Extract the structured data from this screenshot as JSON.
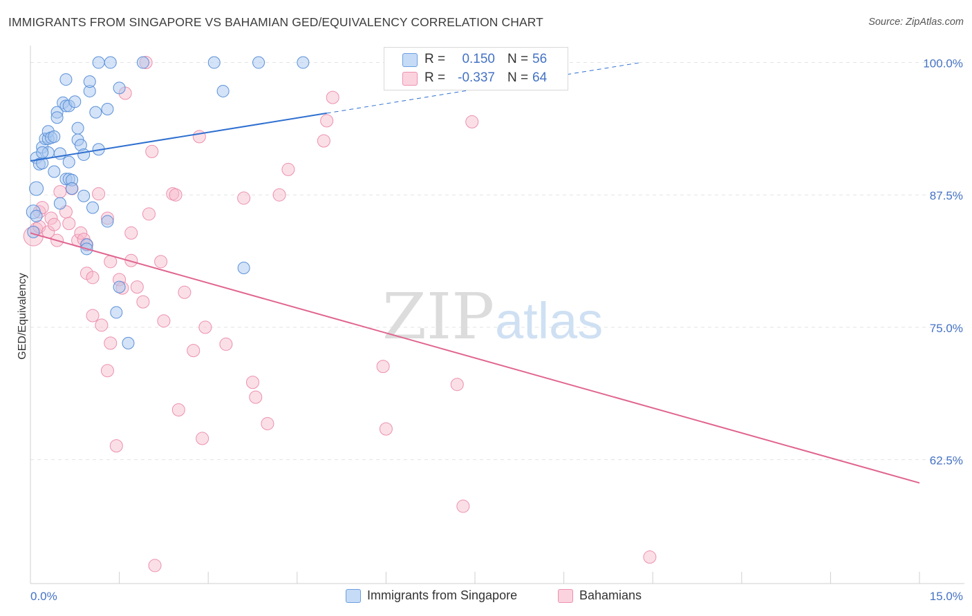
{
  "header": {
    "title": "IMMIGRANTS FROM SINGAPORE VS BAHAMIAN GED/EQUIVALENCY CORRELATION CHART",
    "source": "Source: ZipAtlas.com"
  },
  "watermark": {
    "zip": "ZIP",
    "atlas": "atlas"
  },
  "legend_top": [
    {
      "r_label": "R =",
      "r_value": "0.150",
      "n_label": "N =",
      "n_value": "56",
      "color": "#a9c8f0"
    },
    {
      "r_label": "R =",
      "r_value": "-0.337",
      "n_label": "N =",
      "n_value": "64",
      "color": "#f6b7c9"
    }
  ],
  "legend_bottom": [
    {
      "label": "Immigrants from Singapore",
      "color": "#a9c8f0"
    },
    {
      "label": "Bahamians",
      "color": "#f6b7c9"
    }
  ],
  "colors": {
    "blue": "#4a86d8",
    "blue_line": "#2e6fd0",
    "pink": "#e8769c",
    "pink_line": "#e0648f",
    "axis_text": "#4472c4",
    "grid": "#e3e3e3"
  },
  "chart_data": {
    "type": "scatter",
    "title": "IMMIGRANTS FROM SINGAPORE VS BAHAMIAN GED/EQUIVALENCY CORRELATION CHART",
    "xlabel": "",
    "ylabel": "GED/Equivalency",
    "xlim": [
      0,
      15
    ],
    "ylim": [
      50.8,
      101.6
    ],
    "x_tick_labels": [
      "0.0%",
      "15.0%"
    ],
    "y_ticks": [
      62.5,
      75.0,
      87.5,
      100.0
    ],
    "y_tick_labels": [
      "62.5%",
      "75.0%",
      "87.5%",
      "100.0%"
    ],
    "grid": true,
    "legend_position": "top-center",
    "series": [
      {
        "name": "Immigrants from Singapore",
        "color": "#4a86d8",
        "points": [
          [
            0.1,
            88.1
          ],
          [
            0.05,
            85.9
          ],
          [
            0.1,
            91.0
          ],
          [
            0.15,
            90.4
          ],
          [
            0.2,
            92.0
          ],
          [
            0.2,
            90.5
          ],
          [
            0.25,
            92.8
          ],
          [
            0.3,
            92.8
          ],
          [
            0.3,
            91.5
          ],
          [
            0.3,
            93.5
          ],
          [
            0.35,
            92.9
          ],
          [
            0.4,
            93.0
          ],
          [
            0.4,
            89.7
          ],
          [
            0.45,
            95.3
          ],
          [
            0.45,
            94.8
          ],
          [
            0.5,
            91.4
          ],
          [
            0.5,
            86.7
          ],
          [
            0.55,
            96.2
          ],
          [
            0.6,
            95.9
          ],
          [
            0.6,
            98.4
          ],
          [
            0.6,
            89.0
          ],
          [
            0.65,
            90.6
          ],
          [
            0.65,
            95.9
          ],
          [
            0.65,
            89.0
          ],
          [
            0.7,
            88.9
          ],
          [
            0.7,
            88.1
          ],
          [
            0.75,
            96.3
          ],
          [
            0.8,
            93.8
          ],
          [
            0.8,
            92.7
          ],
          [
            0.85,
            92.2
          ],
          [
            0.9,
            87.4
          ],
          [
            0.9,
            91.3
          ],
          [
            0.95,
            82.8
          ],
          [
            0.95,
            82.4
          ],
          [
            1.0,
            97.3
          ],
          [
            1.0,
            98.2
          ],
          [
            1.05,
            86.3
          ],
          [
            1.1,
            95.3
          ],
          [
            1.15,
            100.0
          ],
          [
            1.15,
            91.8
          ],
          [
            1.3,
            95.6
          ],
          [
            1.3,
            85.0
          ],
          [
            1.35,
            100.0
          ],
          [
            1.45,
            76.4
          ],
          [
            1.5,
            97.6
          ],
          [
            1.5,
            78.8
          ],
          [
            1.65,
            73.5
          ],
          [
            1.9,
            100.0
          ],
          [
            3.1,
            100.0
          ],
          [
            3.25,
            97.3
          ],
          [
            3.6,
            80.6
          ],
          [
            3.85,
            100.0
          ],
          [
            4.6,
            100.0
          ],
          [
            0.05,
            84.0
          ],
          [
            0.1,
            85.5
          ],
          [
            0.2,
            91.5
          ]
        ],
        "trend": {
          "x": [
            0.0,
            10.3
          ],
          "y": [
            90.7,
            100.0
          ],
          "solid_until_x": 5.0
        }
      },
      {
        "name": "Bahamians",
        "color": "#e8769c",
        "points": [
          [
            0.05,
            83.6
          ],
          [
            0.1,
            84.3
          ],
          [
            0.15,
            85.9
          ],
          [
            0.15,
            84.5
          ],
          [
            0.2,
            86.3
          ],
          [
            0.3,
            84.0
          ],
          [
            0.35,
            85.3
          ],
          [
            0.4,
            84.7
          ],
          [
            0.45,
            83.2
          ],
          [
            0.5,
            87.8
          ],
          [
            0.6,
            85.9
          ],
          [
            0.65,
            84.8
          ],
          [
            0.7,
            88.1
          ],
          [
            0.8,
            83.2
          ],
          [
            0.85,
            83.9
          ],
          [
            0.9,
            83.3
          ],
          [
            0.95,
            82.8
          ],
          [
            0.95,
            80.1
          ],
          [
            1.05,
            79.7
          ],
          [
            1.05,
            76.1
          ],
          [
            1.15,
            87.6
          ],
          [
            1.2,
            75.2
          ],
          [
            1.3,
            70.9
          ],
          [
            1.3,
            85.3
          ],
          [
            1.35,
            81.2
          ],
          [
            1.35,
            73.5
          ],
          [
            1.45,
            63.8
          ],
          [
            1.5,
            79.5
          ],
          [
            1.55,
            78.7
          ],
          [
            1.6,
            97.1
          ],
          [
            1.7,
            81.3
          ],
          [
            1.7,
            83.9
          ],
          [
            1.8,
            78.8
          ],
          [
            1.9,
            77.4
          ],
          [
            1.95,
            100.0
          ],
          [
            2.0,
            85.7
          ],
          [
            2.05,
            91.6
          ],
          [
            2.1,
            52.5
          ],
          [
            2.2,
            81.2
          ],
          [
            2.25,
            75.6
          ],
          [
            2.4,
            87.6
          ],
          [
            2.45,
            87.5
          ],
          [
            2.5,
            67.2
          ],
          [
            2.6,
            78.3
          ],
          [
            2.75,
            72.8
          ],
          [
            2.85,
            93.0
          ],
          [
            2.9,
            64.5
          ],
          [
            2.95,
            75.0
          ],
          [
            3.3,
            73.4
          ],
          [
            3.6,
            87.2
          ],
          [
            3.75,
            69.8
          ],
          [
            3.8,
            68.4
          ],
          [
            4.0,
            65.9
          ],
          [
            4.2,
            87.5
          ],
          [
            4.35,
            89.9
          ],
          [
            4.95,
            92.6
          ],
          [
            5.0,
            94.5
          ],
          [
            5.1,
            96.7
          ],
          [
            5.95,
            71.3
          ],
          [
            6.0,
            65.4
          ],
          [
            7.2,
            69.6
          ],
          [
            7.3,
            58.1
          ],
          [
            7.45,
            94.4
          ],
          [
            10.45,
            53.3
          ]
        ],
        "trend": {
          "x": [
            0.0,
            15.0
          ],
          "y": [
            83.9,
            60.3
          ]
        }
      }
    ]
  }
}
